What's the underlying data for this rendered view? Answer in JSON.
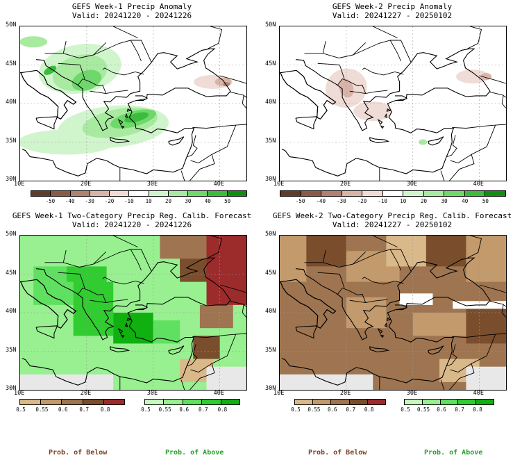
{
  "panels": [
    {
      "line1": "GEFS Week-1 Precip Anomaly",
      "line2": "Valid: 20241220 - 20241226"
    },
    {
      "line1": "GEFS Week-2 Precip Anomaly",
      "line2": "Valid: 20241227 - 20250102"
    },
    {
      "line1": "GEFS Week-1 Two-Category Precip Reg. Calib. Forecast",
      "line2": "Valid: 20241220 - 20241226"
    },
    {
      "line1": "GEFS Week-2 Two-Category Precip Reg. Calib. Forecast",
      "line2": "Valid: 20241227 - 20250102"
    }
  ],
  "axes": {
    "lat_labels": [
      "50N",
      "45N",
      "40N",
      "35N",
      "30N"
    ],
    "lon_labels": [
      "10E",
      "20E",
      "30E",
      "40E"
    ]
  },
  "anomaly_colorbar": {
    "labels": [
      "-50",
      "-40",
      "-30",
      "-20",
      "-10",
      "10",
      "20",
      "30",
      "40",
      "50"
    ],
    "colors": [
      "#5e3c2c",
      "#8a5a48",
      "#b08070",
      "#d8b4a8",
      "#efdcd6",
      "#ffffff",
      "#d0f5cc",
      "#a8eaa0",
      "#6fd86a",
      "#3cbc3c",
      "#108f10"
    ]
  },
  "probability_colorbar": {
    "below_labels": [
      "0.5",
      "0.55",
      "0.6",
      "0.7",
      "0.8"
    ],
    "above_labels": [
      "0.5",
      "0.55",
      "0.6",
      "0.7",
      "0.8"
    ],
    "below_colors": [
      "#d9b98a",
      "#c29a6c",
      "#9e7550",
      "#7a4e2c",
      "#9c2c2c"
    ],
    "above_colors": [
      "#c8f8c0",
      "#98f090",
      "#60e060",
      "#30cc30",
      "#10b010"
    ]
  },
  "legend": {
    "below": "Prob. of Below",
    "above": "Prob. of Above"
  },
  "colors": {
    "water": "#dcf8fa",
    "label_below": "#7a4026",
    "label_above": "#2aa02a",
    "missing": "#e8e8e8"
  }
}
